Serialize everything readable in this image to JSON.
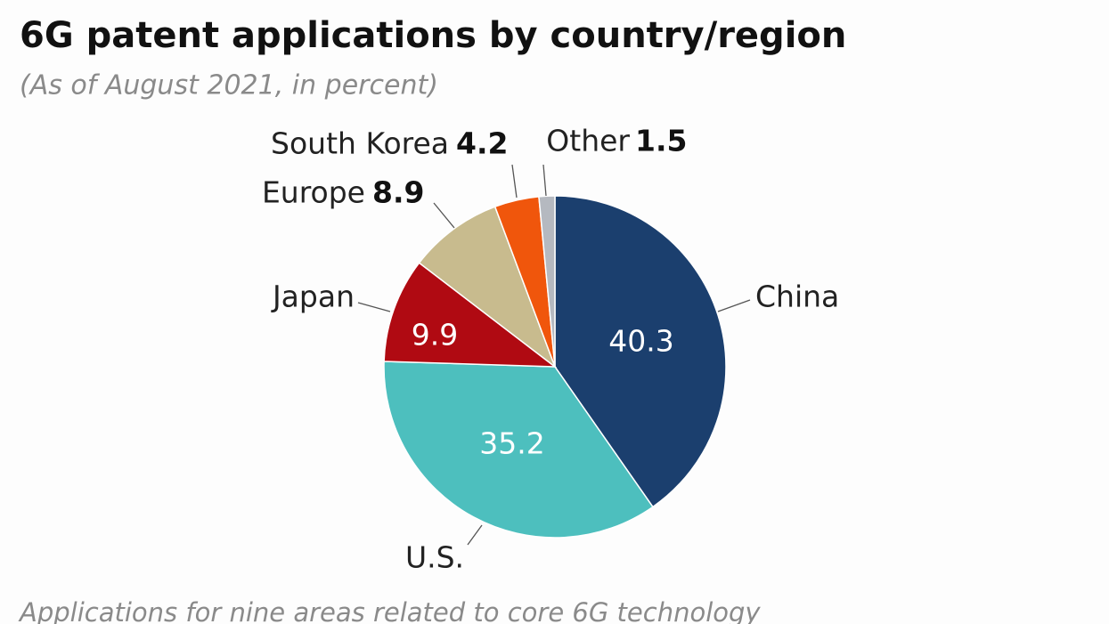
{
  "chart_data": {
    "type": "pie",
    "title": "6G patent applications by country/region",
    "subtitle": "(As of August 2021, in percent)",
    "note": "Applications for nine areas related to core 6G technology",
    "categories": [
      "China",
      "U.S.",
      "Japan",
      "Europe",
      "South Korea",
      "Other"
    ],
    "values": [
      40.3,
      35.2,
      9.9,
      8.9,
      4.2,
      1.5
    ],
    "colors": [
      "#1b3f6e",
      "#4dbfbe",
      "#b00a12",
      "#c8bb8e",
      "#f0560c",
      "#b5b9c0"
    ]
  }
}
